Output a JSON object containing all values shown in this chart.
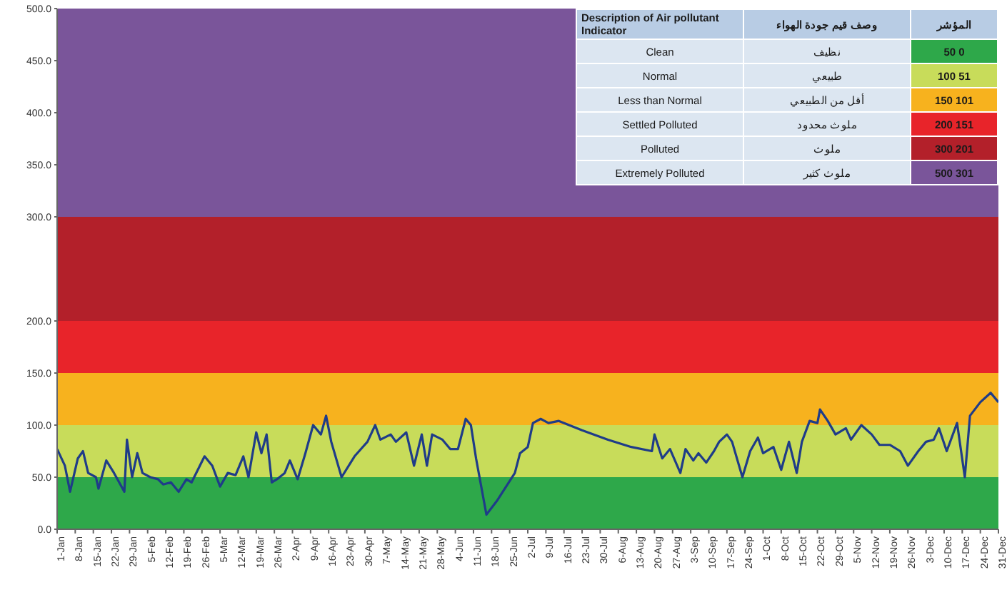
{
  "chart_data": {
    "type": "line",
    "x": [
      "--01-01",
      "--01-04",
      "--01-06",
      "--01-09",
      "--01-11",
      "--01-13",
      "--01-16",
      "--01-17",
      "--01-20",
      "--01-23",
      "--01-27",
      "--01-28",
      "--01-30",
      "--02-01",
      "--02-03",
      "--02-06",
      "--02-09",
      "--02-11",
      "--02-14",
      "--02-17",
      "--02-20",
      "--02-22",
      "--02-27",
      "--03-02",
      "--03-05",
      "--03-08",
      "--03-11",
      "--03-14",
      "--03-16",
      "--03-19",
      "--03-21",
      "--03-23",
      "--03-25",
      "--03-27",
      "--03-30",
      "--04-01",
      "--04-04",
      "--04-07",
      "--04-10",
      "--04-13",
      "--04-15",
      "--04-17",
      "--04-21",
      "--04-26",
      "--05-01",
      "--05-04",
      "--05-06",
      "--05-10",
      "--05-12",
      "--05-16",
      "--05-19",
      "--05-22",
      "--05-24",
      "--05-26",
      "--05-30",
      "--06-02",
      "--06-05",
      "--06-08",
      "--06-10",
      "--06-12",
      "--06-16",
      "--06-20",
      "--06-27",
      "--06-29",
      "--07-02",
      "--07-04",
      "--07-07",
      "--07-10",
      "--07-14",
      "--07-23",
      "--08-02",
      "--08-11",
      "--08-19",
      "--08-20",
      "--08-23",
      "--08-26",
      "--08-30",
      "--09-01",
      "--09-04",
      "--09-06",
      "--09-09",
      "--09-12",
      "--09-14",
      "--09-17",
      "--09-19",
      "--09-23",
      "--09-26",
      "--09-29",
      "--10-01",
      "--10-05",
      "--10-08",
      "--10-11",
      "--10-14",
      "--10-16",
      "--10-19",
      "--10-22",
      "--10-23",
      "--10-26",
      "--10-29",
      "--11-02",
      "--11-04",
      "--11-08",
      "--11-12",
      "--11-15",
      "--11-19",
      "--11-23",
      "--11-26",
      "--11-30",
      "--12-03",
      "--12-06",
      "--12-08",
      "--12-11",
      "--12-15",
      "--12-18",
      "--12-20",
      "--12-24",
      "--12-28",
      "--12-31"
    ],
    "series": [
      {
        "color": "#1f3c88",
        "values": [
          77,
          61,
          36,
          68,
          75,
          54,
          50,
          39,
          66,
          54,
          36,
          86,
          50,
          73,
          54,
          50,
          48,
          43,
          45,
          36,
          48,
          45,
          70,
          61,
          41,
          54,
          52,
          70,
          50,
          93,
          73,
          91,
          45,
          48,
          54,
          66,
          48,
          73,
          100,
          91,
          109,
          84,
          50,
          70,
          84,
          100,
          86,
          91,
          84,
          93,
          61,
          91,
          61,
          91,
          86,
          77,
          77,
          106,
          100,
          68,
          14,
          27,
          54,
          73,
          79,
          102,
          106,
          102,
          104,
          95,
          86,
          79,
          75,
          91,
          68,
          77,
          54,
          77,
          66,
          73,
          64,
          75,
          84,
          91,
          84,
          50,
          75,
          88,
          73,
          79,
          57,
          84,
          54,
          84,
          104,
          102,
          115,
          104,
          91,
          97,
          86,
          100,
          91,
          81,
          81,
          75,
          61,
          75,
          84,
          86,
          97,
          75,
          102,
          50,
          109,
          122,
          131,
          122
        ]
      }
    ],
    "xlim": [
      "--01-01",
      "--12-31"
    ],
    "xticks": [
      {
        "value": "--01-01",
        "label": "1-Jan"
      },
      {
        "value": "--01-08",
        "label": "8-Jan"
      },
      {
        "value": "--01-15",
        "label": "15-Jan"
      },
      {
        "value": "--01-22",
        "label": "22-Jan"
      },
      {
        "value": "--01-29",
        "label": "29-Jan"
      },
      {
        "value": "--02-05",
        "label": "5-Feb"
      },
      {
        "value": "--02-12",
        "label": "12-Feb"
      },
      {
        "value": "--02-19",
        "label": "19-Feb"
      },
      {
        "value": "--02-26",
        "label": "26-Feb"
      },
      {
        "value": "--03-05",
        "label": "5-Mar"
      },
      {
        "value": "--03-12",
        "label": "12-Mar"
      },
      {
        "value": "--03-19",
        "label": "19-Mar"
      },
      {
        "value": "--03-26",
        "label": "26-Mar"
      },
      {
        "value": "--04-02",
        "label": "2-Apr"
      },
      {
        "value": "--04-09",
        "label": "9-Apr"
      },
      {
        "value": "--04-16",
        "label": "16-Apr"
      },
      {
        "value": "--04-23",
        "label": "23-Apr"
      },
      {
        "value": "--04-30",
        "label": "30-Apr"
      },
      {
        "value": "--05-07",
        "label": "7-May"
      },
      {
        "value": "--05-14",
        "label": "14-May"
      },
      {
        "value": "--05-21",
        "label": "21-May"
      },
      {
        "value": "--05-28",
        "label": "28-May"
      },
      {
        "value": "--06-04",
        "label": "4-Jun"
      },
      {
        "value": "--06-11",
        "label": "11-Jun"
      },
      {
        "value": "--06-18",
        "label": "18-Jun"
      },
      {
        "value": "--06-25",
        "label": "25-Jun"
      },
      {
        "value": "--07-02",
        "label": "2-Jul"
      },
      {
        "value": "--07-09",
        "label": "9-Jul"
      },
      {
        "value": "--07-16",
        "label": "16-Jul"
      },
      {
        "value": "--07-23",
        "label": "23-Jul"
      },
      {
        "value": "--07-30",
        "label": "30-Jul"
      },
      {
        "value": "--08-06",
        "label": "6-Aug"
      },
      {
        "value": "--08-13",
        "label": "13-Aug"
      },
      {
        "value": "--08-20",
        "label": "20-Aug"
      },
      {
        "value": "--08-27",
        "label": "27-Aug"
      },
      {
        "value": "--09-03",
        "label": "3-Sep"
      },
      {
        "value": "--09-10",
        "label": "10-Sep"
      },
      {
        "value": "--09-17",
        "label": "17-Sep"
      },
      {
        "value": "--09-24",
        "label": "24-Sep"
      },
      {
        "value": "--10-01",
        "label": "1-Oct"
      },
      {
        "value": "--10-08",
        "label": "8-Oct"
      },
      {
        "value": "--10-15",
        "label": "15-Oct"
      },
      {
        "value": "--10-22",
        "label": "22-Oct"
      },
      {
        "value": "--10-29",
        "label": "29-Oct"
      },
      {
        "value": "--11-05",
        "label": "5-Nov"
      },
      {
        "value": "--11-12",
        "label": "12-Nov"
      },
      {
        "value": "--11-19",
        "label": "19-Nov"
      },
      {
        "value": "--11-26",
        "label": "26-Nov"
      },
      {
        "value": "--12-03",
        "label": "3-Dec"
      },
      {
        "value": "--12-10",
        "label": "10-Dec"
      },
      {
        "value": "--12-17",
        "label": "17-Dec"
      },
      {
        "value": "--12-24",
        "label": "24-Dec"
      },
      {
        "value": "--12-31",
        "label": "31-Dec"
      }
    ],
    "ylim": [
      0,
      500
    ],
    "yticks": [
      {
        "value": 0,
        "label": "0.0"
      },
      {
        "value": 50,
        "label": "50.0"
      },
      {
        "value": 100,
        "label": "100.0"
      },
      {
        "value": 150,
        "label": "150.0"
      },
      {
        "value": 200,
        "label": "200.0"
      },
      {
        "value": 300,
        "label": "300.0"
      },
      {
        "value": 350,
        "label": "350.0"
      },
      {
        "value": 400,
        "label": "400.0"
      },
      {
        "value": 450,
        "label": "450.0"
      },
      {
        "value": 500,
        "label": "500.0"
      }
    ],
    "bands": [
      {
        "axis": "y",
        "from": 0,
        "to": 50,
        "color": "#2ea84a"
      },
      {
        "axis": "y",
        "from": 50,
        "to": 100,
        "color": "#c8dc5a"
      },
      {
        "axis": "y",
        "from": 100,
        "to": 150,
        "color": "#f7b21e"
      },
      {
        "axis": "y",
        "from": 150,
        "to": 200,
        "color": "#e8242a"
      },
      {
        "axis": "y",
        "from": 200,
        "to": 300,
        "color": "#b3202a"
      },
      {
        "axis": "y",
        "from": 300,
        "to": 500,
        "color": "#7a559a"
      }
    ],
    "annotations": [
      "Description of Air pollutant Indicator",
      "وصف قيم جودة الهواء",
      "المؤشر",
      "Clean",
      "نظيف",
      "50 0",
      "Normal",
      "طبيعي",
      "100 51",
      "Less than Normal",
      "أقل من الطبيعي",
      "150 101",
      "Settled Polluted",
      "ملوث محدود",
      "200 151",
      "Polluted",
      "ملوث",
      "300 201",
      "Extremely Polluted",
      "ملوث كثير",
      "500 301"
    ],
    "marker": "none",
    "line_style": "solid"
  }
}
